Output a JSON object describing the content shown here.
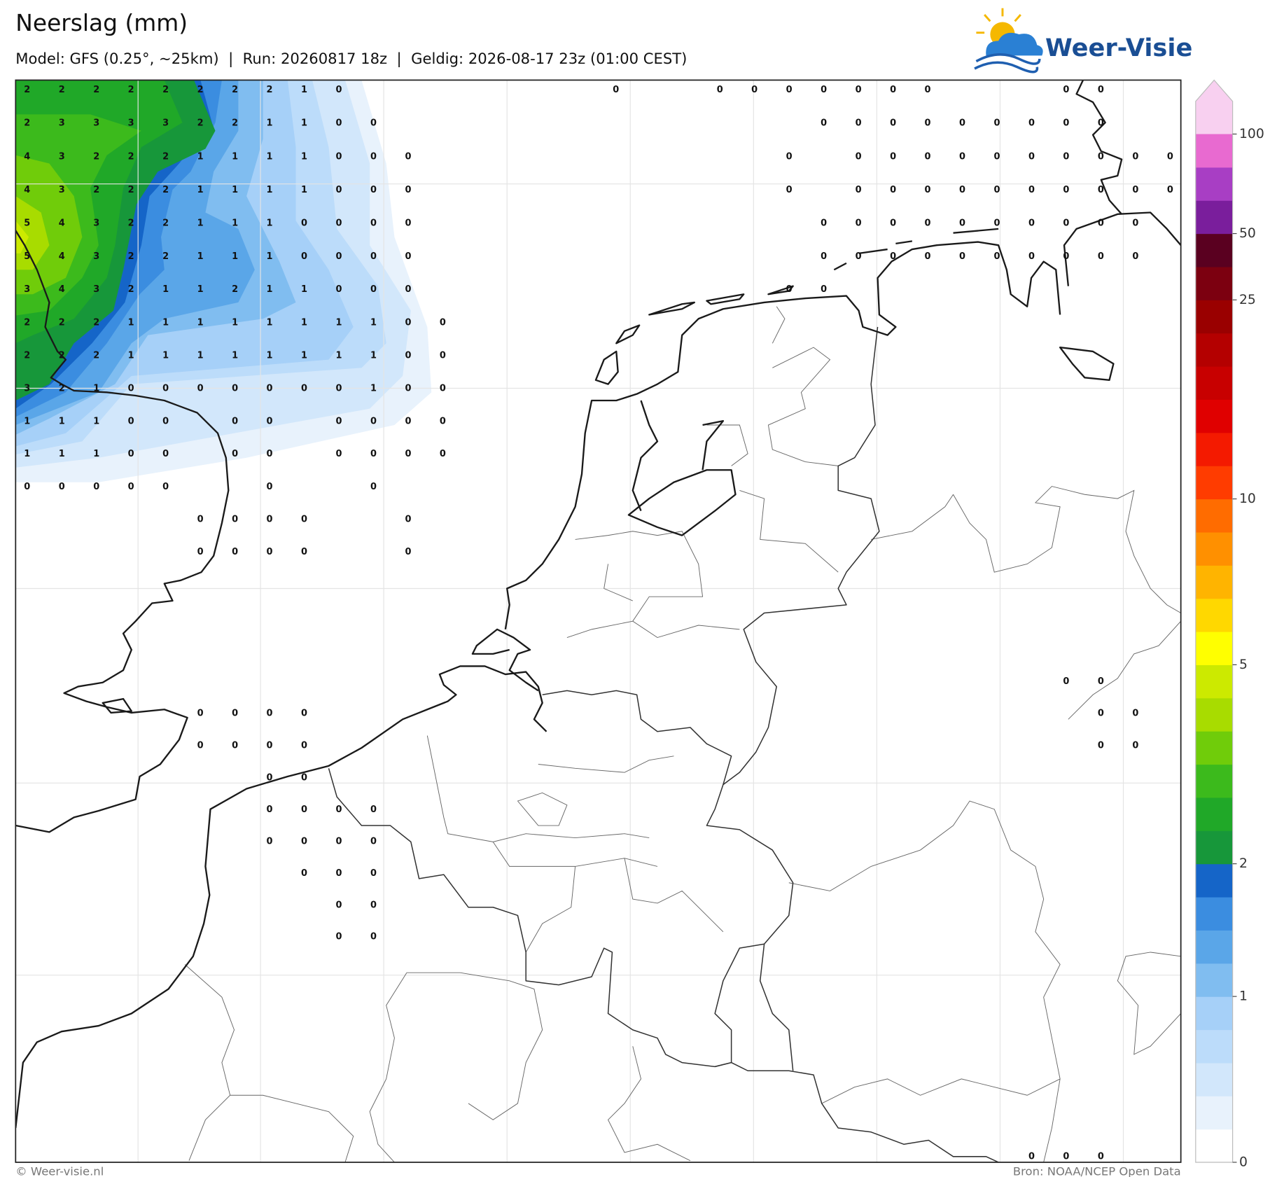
{
  "header": {
    "title": "Neerslag (mm)",
    "subtitle": "Model: GFS (0.25°, ~25km)  |  Run: 20260817 18z  |  Geldig: 2026-08-17 23z (01:00 CEST)",
    "logo": "Weer-Visie"
  },
  "map": {
    "rows": [
      [
        2,
        2,
        2,
        2,
        2,
        2,
        2,
        2,
        1,
        0,
        null,
        null,
        null,
        null,
        null,
        null,
        null,
        0,
        null,
        null,
        0,
        0,
        0,
        0,
        0,
        0,
        0,
        null,
        null,
        null,
        0,
        0,
        null,
        null
      ],
      [
        2,
        3,
        3,
        3,
        3,
        2,
        2,
        1,
        1,
        0,
        0,
        null,
        null,
        null,
        null,
        null,
        null,
        null,
        null,
        null,
        null,
        null,
        null,
        0,
        0,
        0,
        0,
        0,
        0,
        0,
        0,
        0,
        null,
        null
      ],
      [
        4,
        3,
        2,
        2,
        2,
        1,
        1,
        1,
        1,
        0,
        0,
        0,
        null,
        null,
        null,
        null,
        null,
        null,
        null,
        null,
        null,
        null,
        0,
        null,
        0,
        0,
        0,
        0,
        0,
        0,
        0,
        0,
        0,
        0
      ],
      [
        4,
        3,
        2,
        2,
        2,
        1,
        1,
        1,
        1,
        0,
        0,
        0,
        null,
        null,
        null,
        null,
        null,
        null,
        null,
        null,
        null,
        null,
        0,
        null,
        0,
        0,
        0,
        0,
        0,
        0,
        0,
        0,
        0,
        0
      ],
      [
        5,
        4,
        3,
        2,
        2,
        1,
        1,
        1,
        0,
        0,
        0,
        0,
        null,
        null,
        null,
        null,
        null,
        null,
        null,
        null,
        null,
        null,
        null,
        0,
        0,
        0,
        0,
        0,
        0,
        0,
        0,
        0,
        0,
        null
      ],
      [
        5,
        4,
        3,
        2,
        2,
        1,
        1,
        1,
        0,
        0,
        0,
        0,
        null,
        null,
        null,
        null,
        null,
        null,
        null,
        null,
        null,
        null,
        null,
        0,
        0,
        0,
        0,
        0,
        0,
        0,
        0,
        0,
        0,
        null
      ],
      [
        3,
        4,
        3,
        2,
        1,
        1,
        2,
        1,
        1,
        0,
        0,
        0,
        null,
        null,
        null,
        null,
        null,
        null,
        null,
        null,
        null,
        null,
        0,
        0,
        null,
        null,
        null,
        null,
        null,
        null,
        null,
        null,
        null,
        null
      ],
      [
        2,
        2,
        2,
        1,
        1,
        1,
        1,
        1,
        1,
        1,
        1,
        0,
        0,
        null,
        null,
        null,
        null,
        null,
        null,
        null,
        null,
        null,
        null,
        null,
        null,
        null,
        null,
        null,
        null,
        null,
        null,
        null,
        null,
        null
      ],
      [
        2,
        2,
        2,
        1,
        1,
        1,
        1,
        1,
        1,
        1,
        1,
        0,
        0,
        null,
        null,
        null,
        null,
        null,
        null,
        null,
        null,
        null,
        null,
        null,
        null,
        null,
        null,
        null,
        null,
        null,
        null,
        null,
        null,
        null
      ],
      [
        3,
        2,
        1,
        0,
        0,
        0,
        0,
        0,
        0,
        0,
        1,
        0,
        0,
        null,
        null,
        null,
        null,
        null,
        null,
        null,
        null,
        null,
        null,
        null,
        null,
        null,
        null,
        null,
        null,
        null,
        null,
        null,
        null,
        null
      ],
      [
        1,
        1,
        1,
        0,
        0,
        null,
        0,
        0,
        null,
        0,
        0,
        0,
        0,
        null,
        null,
        null,
        null,
        null,
        null,
        null,
        null,
        null,
        null,
        null,
        null,
        null,
        null,
        null,
        null,
        null,
        null,
        null,
        null,
        null
      ],
      [
        1,
        1,
        1,
        0,
        0,
        null,
        0,
        0,
        null,
        0,
        0,
        0,
        0,
        null,
        null,
        null,
        null,
        null,
        null,
        null,
        null,
        null,
        null,
        null,
        null,
        null,
        null,
        null,
        null,
        null,
        null,
        null,
        null,
        null
      ],
      [
        0,
        0,
        0,
        0,
        0,
        null,
        null,
        0,
        null,
        null,
        0,
        null,
        null,
        null,
        null,
        null,
        null,
        null,
        null,
        null,
        null,
        null,
        null,
        null,
        null,
        null,
        null,
        null,
        null,
        null,
        null,
        null,
        null,
        null
      ],
      [
        null,
        null,
        null,
        null,
        null,
        0,
        0,
        0,
        0,
        null,
        null,
        0,
        null,
        null,
        null,
        null,
        null,
        null,
        null,
        null,
        null,
        null,
        null,
        null,
        null,
        null,
        null,
        null,
        null,
        null,
        null,
        null,
        null,
        null
      ],
      [
        null,
        null,
        null,
        null,
        null,
        0,
        0,
        0,
        0,
        null,
        null,
        0,
        null,
        null,
        null,
        null,
        null,
        null,
        null,
        null,
        null,
        null,
        null,
        null,
        null,
        null,
        null,
        null,
        null,
        null,
        null,
        null,
        null,
        null
      ],
      [
        null,
        null,
        null,
        null,
        null,
        null,
        null,
        null,
        null,
        null,
        null,
        null,
        null,
        null,
        null,
        null,
        null,
        null,
        null,
        null,
        null,
        null,
        null,
        null,
        null,
        null,
        null,
        null,
        null,
        null,
        null,
        null,
        null,
        null
      ],
      [
        null,
        null,
        null,
        null,
        null,
        null,
        null,
        null,
        null,
        null,
        null,
        null,
        null,
        null,
        null,
        null,
        null,
        null,
        null,
        null,
        null,
        null,
        null,
        null,
        null,
        null,
        null,
        null,
        null,
        null,
        null,
        null,
        null,
        null
      ],
      [
        null,
        null,
        null,
        null,
        null,
        null,
        null,
        null,
        null,
        null,
        null,
        null,
        null,
        null,
        null,
        null,
        null,
        null,
        null,
        null,
        null,
        null,
        null,
        null,
        null,
        null,
        null,
        null,
        null,
        null,
        null,
        null,
        null,
        null
      ],
      [
        null,
        null,
        null,
        null,
        null,
        null,
        null,
        null,
        null,
        null,
        null,
        null,
        null,
        null,
        null,
        null,
        null,
        null,
        null,
        null,
        null,
        null,
        null,
        null,
        null,
        null,
        null,
        null,
        null,
        null,
        0,
        0,
        null,
        null
      ],
      [
        null,
        null,
        null,
        null,
        null,
        0,
        0,
        0,
        0,
        null,
        null,
        null,
        null,
        null,
        null,
        null,
        null,
        null,
        null,
        null,
        null,
        null,
        null,
        null,
        null,
        null,
        null,
        null,
        null,
        null,
        null,
        0,
        0,
        null
      ],
      [
        null,
        null,
        null,
        null,
        null,
        0,
        0,
        0,
        0,
        null,
        null,
        null,
        null,
        null,
        null,
        null,
        null,
        null,
        null,
        null,
        null,
        null,
        null,
        null,
        null,
        null,
        null,
        null,
        null,
        null,
        null,
        0,
        0,
        null
      ],
      [
        null,
        null,
        null,
        null,
        null,
        null,
        null,
        0,
        0,
        null,
        null,
        null,
        null,
        null,
        null,
        null,
        null,
        null,
        null,
        null,
        null,
        null,
        null,
        null,
        null,
        null,
        null,
        null,
        null,
        null,
        null,
        null,
        null,
        null
      ],
      [
        null,
        null,
        null,
        null,
        null,
        null,
        null,
        0,
        0,
        0,
        0,
        null,
        null,
        null,
        null,
        null,
        null,
        null,
        null,
        null,
        null,
        null,
        null,
        null,
        null,
        null,
        null,
        null,
        null,
        null,
        null,
        null,
        null,
        null
      ],
      [
        null,
        null,
        null,
        null,
        null,
        null,
        null,
        0,
        0,
        0,
        0,
        null,
        null,
        null,
        null,
        null,
        null,
        null,
        null,
        null,
        null,
        null,
        null,
        null,
        null,
        null,
        null,
        null,
        null,
        null,
        null,
        null,
        null,
        null
      ],
      [
        null,
        null,
        null,
        null,
        null,
        null,
        null,
        null,
        0,
        0,
        0,
        null,
        null,
        null,
        null,
        null,
        null,
        null,
        null,
        null,
        null,
        null,
        null,
        null,
        null,
        null,
        null,
        null,
        null,
        null,
        null,
        null,
        null,
        null
      ],
      [
        null,
        null,
        null,
        null,
        null,
        null,
        null,
        null,
        null,
        0,
        0,
        null,
        null,
        null,
        null,
        null,
        null,
        null,
        null,
        null,
        null,
        null,
        null,
        null,
        null,
        null,
        null,
        null,
        null,
        null,
        null,
        null,
        null,
        null
      ],
      [
        null,
        null,
        null,
        null,
        null,
        null,
        null,
        null,
        null,
        0,
        0,
        null,
        null,
        null,
        null,
        null,
        null,
        null,
        null,
        null,
        null,
        null,
        null,
        null,
        null,
        null,
        null,
        null,
        null,
        null,
        null,
        null,
        null,
        null
      ],
      [
        null,
        null,
        null,
        null,
        null,
        null,
        null,
        null,
        null,
        null,
        null,
        null,
        null,
        null,
        null,
        null,
        null,
        null,
        null,
        null,
        null,
        null,
        null,
        null,
        null,
        null,
        null,
        null,
        null,
        null,
        null,
        null,
        null,
        null
      ],
      [
        null,
        null,
        null,
        null,
        null,
        null,
        null,
        null,
        null,
        null,
        null,
        null,
        null,
        null,
        null,
        null,
        null,
        null,
        null,
        null,
        null,
        null,
        null,
        null,
        null,
        null,
        null,
        null,
        null,
        null,
        null,
        null,
        null,
        null
      ],
      [
        null,
        null,
        null,
        null,
        null,
        null,
        null,
        null,
        null,
        null,
        null,
        null,
        null,
        null,
        null,
        null,
        null,
        null,
        null,
        null,
        null,
        null,
        null,
        null,
        null,
        null,
        null,
        null,
        null,
        null,
        null,
        null,
        null,
        null
      ],
      [
        null,
        null,
        null,
        null,
        null,
        null,
        null,
        null,
        null,
        null,
        null,
        null,
        null,
        null,
        null,
        null,
        null,
        null,
        null,
        null,
        null,
        null,
        null,
        null,
        null,
        null,
        null,
        null,
        null,
        null,
        null,
        null,
        null,
        null
      ],
      [
        null,
        null,
        null,
        null,
        null,
        null,
        null,
        null,
        null,
        null,
        null,
        null,
        null,
        null,
        null,
        null,
        null,
        null,
        null,
        null,
        null,
        null,
        null,
        null,
        null,
        null,
        null,
        null,
        null,
        null,
        null,
        null,
        null,
        null
      ],
      [
        null,
        null,
        null,
        null,
        null,
        null,
        null,
        null,
        null,
        null,
        null,
        null,
        null,
        null,
        null,
        null,
        null,
        null,
        null,
        null,
        null,
        null,
        null,
        null,
        null,
        null,
        null,
        null,
        null,
        null,
        null,
        null,
        null,
        null
      ],
      [
        null,
        null,
        null,
        null,
        null,
        null,
        null,
        null,
        null,
        null,
        null,
        null,
        null,
        null,
        null,
        null,
        null,
        null,
        null,
        null,
        null,
        null,
        null,
        null,
        null,
        null,
        null,
        null,
        null,
        0,
        0,
        0,
        null,
        null
      ]
    ]
  },
  "colorbar": {
    "levels": [
      0,
      0.1,
      0.25,
      0.5,
      0.75,
      1,
      1.25,
      1.5,
      1.75,
      2,
      2.5,
      3,
      3.5,
      4,
      4.5,
      5,
      6,
      7,
      8,
      9,
      10,
      12.5,
      15,
      17.5,
      20,
      22.5,
      25,
      37.5,
      50,
      65,
      80,
      100
    ],
    "colors": [
      "#ffffff",
      "#e8f2fc",
      "#d2e7fb",
      "#bcdcfa",
      "#a6d0f8",
      "#80bdf0",
      "#5aa6e8",
      "#3b8de0",
      "#1565c8",
      "#17973a",
      "#20a828",
      "#3cba1c",
      "#70cc0a",
      "#a8dc00",
      "#ccea00",
      "#ffff00",
      "#ffd800",
      "#ffb400",
      "#ff9000",
      "#ff6c00",
      "#ff3c00",
      "#f41a00",
      "#e00000",
      "#c80000",
      "#b40000",
      "#9a0000",
      "#7c0010",
      "#5a0020",
      "#7a1e9c",
      "#a83ec4",
      "#e86ad0"
    ],
    "extend_color": "#f8d0f0",
    "ticks": [
      0,
      1,
      2,
      5,
      10,
      25,
      50,
      100
    ]
  },
  "footer": {
    "left": "© Weer-visie.nl",
    "right": "Bron: NOAA/NCEP Open Data"
  }
}
